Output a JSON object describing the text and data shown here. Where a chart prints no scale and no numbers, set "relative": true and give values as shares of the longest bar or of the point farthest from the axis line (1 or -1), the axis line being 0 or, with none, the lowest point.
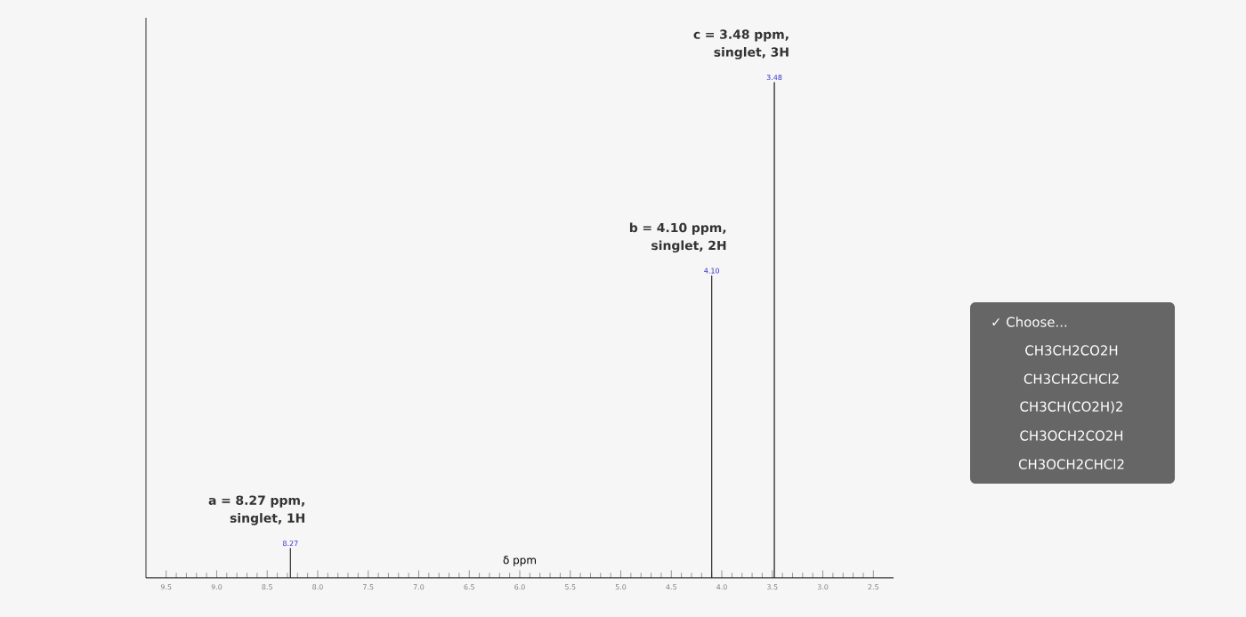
{
  "chart_data": {
    "type": "line",
    "xlabel": "δ ppm",
    "relative": true,
    "tick_labels": "x",
    "marker": "none",
    "line_style": "solid",
    "xlim": [
      9.7,
      2.3
    ],
    "xticks": [
      9.5,
      {
        "value": 9.0,
        "label": "9.0"
      },
      8.5,
      {
        "value": 8.0,
        "label": "8.0"
      },
      7.5,
      {
        "value": 7.0,
        "label": "7.0"
      },
      6.5,
      {
        "value": 6.0,
        "label": "6.0"
      },
      5.5,
      {
        "value": 5.0,
        "label": "5.0"
      },
      4.5,
      {
        "value": 4.0,
        "label": "4.0"
      },
      3.5,
      {
        "value": 3.0,
        "label": "3.0"
      },
      2.5
    ],
    "series": [
      {
        "color": "#222222",
        "x": [
          9.7,
          8.27,
          8.27,
          8.27,
          4.1,
          4.1,
          4.1,
          3.48,
          3.48,
          3.48,
          2.3
        ],
        "values": [
          0,
          0,
          0.06,
          0,
          0,
          0.61,
          0,
          0,
          1,
          0,
          0
        ]
      }
    ],
    "annotations": [
      {
        "text": "8.27",
        "x": 8.27,
        "y": 0.06
      },
      {
        "text": "4.10",
        "x": 4.1,
        "y": 0.61
      },
      {
        "text": "3.48",
        "x": 3.48,
        "y": 1.0
      },
      "a = 8.27 ppm, singlet, 1H",
      "b = 4.10 ppm, singlet, 2H",
      "c = 3.48 ppm, singlet, 3H",
      "✓ Choose...",
      "CH3CH2CO2H",
      "CH3CH2CHCl2",
      "CH3CH(CO2H)2",
      "CH3OCH2CO2H",
      "CH3OCH2CHCl2"
    ]
  }
}
